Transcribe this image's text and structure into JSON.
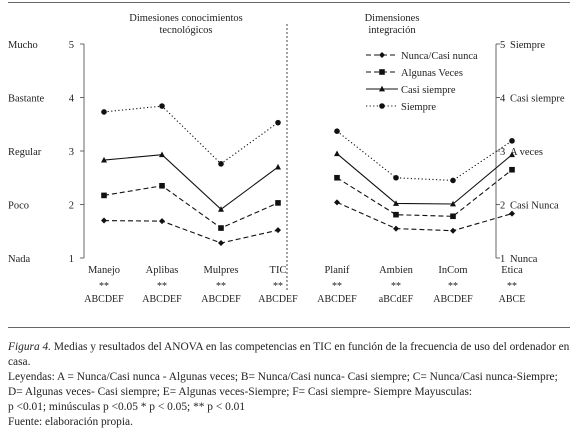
{
  "chart_data": {
    "type": "line",
    "panels": [
      {
        "title": "Dimesiones conocimientos\ntecnológicos",
        "categories": [
          "Manejo",
          "Aplibas",
          "Mulpres",
          "TIC"
        ],
        "significance": [
          "**",
          "**",
          "**",
          "**"
        ],
        "contrasts": [
          "ABCDEF",
          "ABCDEF",
          "ABCDEF",
          "ABCDEF"
        ]
      },
      {
        "title": "Dimensiones\nintegración",
        "categories": [
          "Planif",
          "Ambien",
          "InCom",
          "Etica"
        ],
        "significance": [
          "**",
          "**",
          "**",
          "**"
        ],
        "contrasts": [
          "ABCDEF",
          "aBCdEF",
          "ABCDEF",
          "ABCE"
        ]
      }
    ],
    "ylim": [
      1,
      5
    ],
    "left_axis": {
      "ticks": [
        1,
        2,
        3,
        4,
        5
      ],
      "labels": [
        "Nada",
        "Poco",
        "Regular",
        "Bastante",
        "Mucho"
      ]
    },
    "right_axis": {
      "ticks": [
        1,
        2,
        3,
        4,
        5
      ],
      "labels": [
        "Nunca",
        "Casi Nunca",
        "A veces",
        "Casi siempre",
        "Siempre"
      ]
    },
    "legend_position": "top-right",
    "series": [
      {
        "name": "Nunca/Casi nunca",
        "marker": "diamond",
        "dash": "dashed",
        "values": [
          1.7,
          1.69,
          1.28,
          1.52,
          2.04,
          1.55,
          1.51,
          1.83
        ]
      },
      {
        "name": "Algunas Veces",
        "marker": "square",
        "dash": "dashed",
        "values": [
          2.17,
          2.35,
          1.56,
          2.03,
          2.5,
          1.81,
          1.78,
          2.65
        ]
      },
      {
        "name": "Casi siempre",
        "marker": "triangle",
        "dash": "solid",
        "values": [
          2.83,
          2.93,
          1.91,
          2.7,
          2.95,
          2.02,
          2.01,
          2.93
        ]
      },
      {
        "name": "Siempre",
        "marker": "circle",
        "dash": "dotted",
        "values": [
          3.73,
          3.84,
          2.76,
          3.53,
          3.37,
          2.5,
          2.45,
          3.19
        ]
      }
    ]
  },
  "caption": {
    "figure_label": "Figura 4.",
    "line1": "Medias y resultados del ANOVA en las competencias en TIC en función de la frecuencia de uso del ordenador en casa.",
    "line2": "Leyendas: A = Nunca/Casi nunca - Algunas veces; B= Nunca/Casi nunca- Casi siempre; C= Nunca/Casi nunca-Siempre; D= Algunas veces- Casi siempre; E= Algunas veces-Siempre; F= Casi siempre- Siempre Mayusculas:",
    "line3": "p <0.01; minúsculas p <0.05 * p < 0.05; ** p < 0.01",
    "line4": "Fuente: elaboración propia."
  }
}
